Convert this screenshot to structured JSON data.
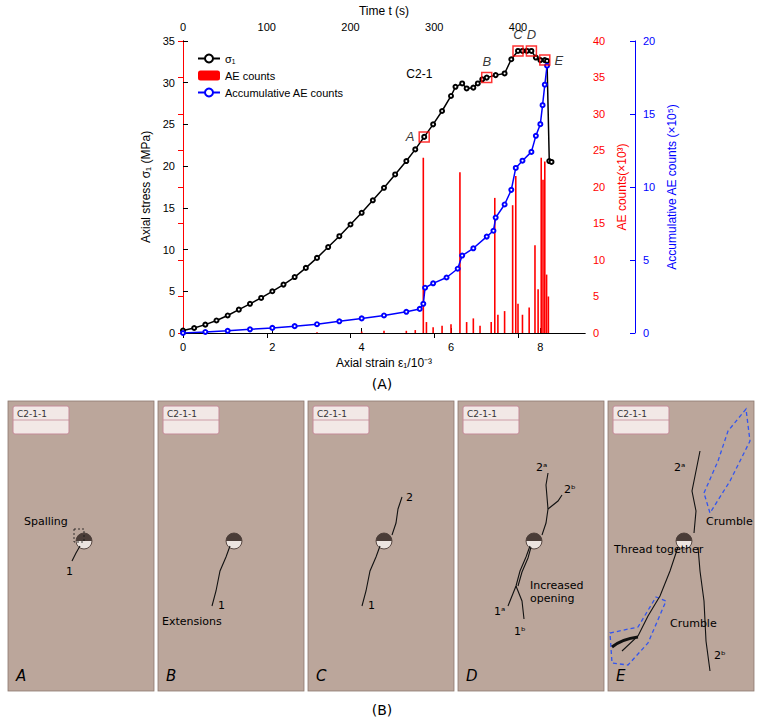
{
  "chart_data": {
    "type": "line",
    "title": "C2-1",
    "xlabel": "Axial strain ε₁/10⁻³",
    "xlim": [
      0,
      9
    ],
    "xticks": [
      0,
      2,
      4,
      6,
      8
    ],
    "x2label": "Time t (s)",
    "x2lim": [
      0,
      480
    ],
    "x2ticks": [
      0,
      100,
      200,
      300,
      400
    ],
    "ylabel": "Axial stress σ₁ (MPa)",
    "ylim": [
      0,
      35
    ],
    "yticks": [
      0,
      5,
      10,
      15,
      20,
      25,
      30,
      35
    ],
    "y2label": "AE counts(×10³)",
    "y2lim": [
      0,
      40
    ],
    "y2ticks": [
      0,
      5,
      10,
      15,
      20,
      25,
      30,
      35,
      40
    ],
    "y3label": "Accumulative AE counts (×10⁵)",
    "y3lim": [
      0,
      20
    ],
    "y3ticks": [
      0,
      5,
      10,
      15,
      20
    ],
    "grid": false,
    "legend": "upper left",
    "series": [
      {
        "name": "σ₁",
        "type": "line",
        "color": "#000000",
        "marker": "circle",
        "x": [
          0,
          0.25,
          0.5,
          0.75,
          1.0,
          1.25,
          1.5,
          1.75,
          2.0,
          2.25,
          2.5,
          2.75,
          3.0,
          3.25,
          3.5,
          3.75,
          4.0,
          4.25,
          4.5,
          4.75,
          5.0,
          5.2,
          5.4,
          5.6,
          5.8,
          6.0,
          6.1,
          6.25,
          6.35,
          6.5,
          6.6,
          6.7,
          6.8,
          7.0,
          7.2,
          7.35,
          7.5,
          7.6,
          7.7,
          7.8,
          7.9,
          8.0,
          8.1,
          8.15,
          8.2,
          8.25
        ],
        "values": [
          0.3,
          0.6,
          1.0,
          1.5,
          2.1,
          2.8,
          3.5,
          4.2,
          5.0,
          5.8,
          6.7,
          7.8,
          9.0,
          10.3,
          11.6,
          13.0,
          14.4,
          15.9,
          17.4,
          19.0,
          20.6,
          22.0,
          23.5,
          25.0,
          26.6,
          28.4,
          29.5,
          29.9,
          29.3,
          29.4,
          29.9,
          30.4,
          30.6,
          30.9,
          31.1,
          32.8,
          33.8,
          33.8,
          33.8,
          33.8,
          33.0,
          32.7,
          32.7,
          32.6,
          20.6,
          20.5
        ]
      },
      {
        "name": "AE counts",
        "type": "bar",
        "axis": "y2",
        "color": "#ff0000",
        "x": [
          3.0,
          4.0,
          4.5,
          5.0,
          5.2,
          5.38,
          5.45,
          5.6,
          5.8,
          6.0,
          6.2,
          6.35,
          6.5,
          6.65,
          6.9,
          6.98,
          7.05,
          7.2,
          7.38,
          7.45,
          7.5,
          7.6,
          7.75,
          7.88,
          7.95,
          8.02,
          8.06,
          8.1,
          8.14,
          8.18
        ],
        "values": [
          0.1,
          0.2,
          0.3,
          0.3,
          0.4,
          24.0,
          1.5,
          0.8,
          1.0,
          1.2,
          22.0,
          1.5,
          2.0,
          1.0,
          1.5,
          18.5,
          2.5,
          3.0,
          17.5,
          21.5,
          4.0,
          2.5,
          3.5,
          12.0,
          6.0,
          24.0,
          21.0,
          23.5,
          8.0,
          5.0
        ]
      },
      {
        "name": "Accumulative AE counts",
        "type": "line",
        "axis": "y3",
        "color": "#0000ff",
        "marker": "circle",
        "x": [
          0,
          0.5,
          1.0,
          1.5,
          2.0,
          2.5,
          3.0,
          3.5,
          4.0,
          4.5,
          5.0,
          5.3,
          5.38,
          5.42,
          5.6,
          5.9,
          6.15,
          6.25,
          6.5,
          6.8,
          6.95,
          7.0,
          7.2,
          7.35,
          7.45,
          7.6,
          7.8,
          7.9,
          8.0,
          8.05,
          8.1,
          8.15
        ],
        "values": [
          0,
          0.07,
          0.15,
          0.25,
          0.35,
          0.47,
          0.6,
          0.8,
          1.0,
          1.2,
          1.45,
          1.65,
          2.0,
          3.1,
          3.4,
          3.8,
          4.4,
          5.3,
          5.8,
          6.6,
          7.0,
          7.9,
          8.8,
          9.8,
          11.3,
          11.8,
          12.4,
          13.5,
          14.3,
          15.6,
          17.0,
          18.3
        ]
      }
    ],
    "points": {
      "labels": [
        "A",
        "B",
        "C",
        "D",
        "E"
      ],
      "x": [
        5.4,
        6.8,
        7.5,
        7.8,
        8.1
      ],
      "values": [
        23.5,
        30.6,
        33.8,
        33.8,
        32.7
      ],
      "color": "#ff0000",
      "marker": "square"
    }
  },
  "panel_a_label": "(A)",
  "figure_b": {
    "label": "(B)",
    "panels": [
      {
        "plate": "C2-1-1",
        "letter": "A",
        "annotations": [
          "Spalling",
          "1"
        ]
      },
      {
        "plate": "C2-1-1",
        "letter": "B",
        "annotations": [
          "Extensions",
          "1"
        ]
      },
      {
        "plate": "C2-1-1",
        "letter": "C",
        "annotations": [
          "2",
          "1"
        ]
      },
      {
        "plate": "C2-1-1",
        "letter": "D",
        "annotations": [
          "2ᵃ",
          "2ᵇ",
          "1ᵃ",
          "1ᵇ",
          "Increased opening"
        ]
      },
      {
        "plate": "C2-1-1",
        "letter": "E",
        "annotations": [
          "2ᵃ",
          "Crumble",
          "Thread together",
          "2ᵇ",
          "Crumble"
        ]
      }
    ]
  }
}
